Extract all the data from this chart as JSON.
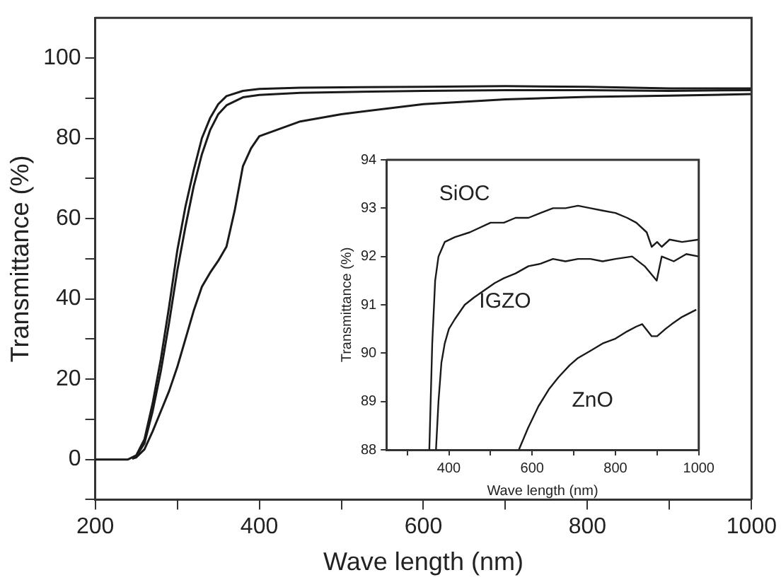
{
  "chart_data": [
    {
      "type": "line",
      "xlabel": "Wave length (nm)",
      "ylabel": "Transmittance (%)",
      "xlim": [
        200,
        1000
      ],
      "ylim": [
        -10,
        110
      ],
      "xticks": [
        200,
        {
          "value": 300,
          "label": null
        },
        400,
        {
          "value": 500,
          "label": null
        },
        600,
        {
          "value": 700,
          "label": null
        },
        800,
        {
          "value": 900,
          "label": null
        },
        1000
      ],
      "yticks": [
        {
          "value": -10,
          "label": null
        },
        0,
        {
          "value": 10,
          "label": null
        },
        20,
        {
          "value": 30,
          "label": null
        },
        40,
        {
          "value": 50,
          "label": null
        },
        60,
        {
          "value": 70,
          "label": null
        },
        80,
        {
          "value": 90,
          "label": null
        },
        100
      ],
      "grid": false,
      "legend": false,
      "marker": "none",
      "line_style": "solid",
      "series": [
        {
          "color": "#1a1a1a",
          "x": [
            200,
            240,
            250,
            260,
            270,
            280,
            290,
            300,
            310,
            320,
            330,
            340,
            350,
            360,
            380,
            400,
            450,
            500,
            600,
            700,
            800,
            900,
            1000
          ],
          "values": [
            0,
            0,
            1,
            5,
            14,
            25,
            38,
            52,
            63,
            72,
            80,
            85,
            88.5,
            90.5,
            91.8,
            92.3,
            92.6,
            92.7,
            92.8,
            93,
            92.8,
            92.4,
            92.4
          ]
        },
        {
          "color": "#1a1a1a",
          "x": [
            245,
            250,
            260,
            270,
            280,
            290,
            300,
            310,
            320,
            330,
            340,
            350,
            360,
            380,
            400,
            450,
            500,
            600,
            700,
            800,
            900,
            1000
          ],
          "values": [
            0.3,
            0.8,
            4,
            12,
            22,
            34,
            47,
            58,
            68,
            76,
            82,
            86,
            88.2,
            90.2,
            90.8,
            91.3,
            91.5,
            91.8,
            92,
            92,
            91.8,
            92
          ]
        },
        {
          "color": "#1a1a1a",
          "x": [
            245,
            250,
            260,
            270,
            280,
            290,
            300,
            310,
            320,
            330,
            340,
            350,
            360,
            370,
            380,
            390,
            400,
            450,
            500,
            600,
            700,
            800,
            900,
            1000
          ],
          "values": [
            0.2,
            0.5,
            2.5,
            7,
            12,
            17,
            23,
            30,
            37,
            43,
            46.5,
            49.5,
            53,
            62,
            73,
            77.5,
            80.5,
            84.2,
            86,
            88.5,
            89.7,
            90.3,
            90.6,
            91
          ]
        }
      ]
    },
    {
      "type": "line",
      "xlabel": "Wave length (nm)",
      "ylabel": "Transmittance (%)",
      "xlim": [
        250,
        1000
      ],
      "ylim": [
        88,
        94
      ],
      "xticks": [
        {
          "value": 300,
          "label": null
        },
        400,
        {
          "value": 500,
          "label": null
        },
        600,
        {
          "value": 700,
          "label": null
        },
        800,
        {
          "value": 900,
          "label": null
        },
        1000
      ],
      "yticks": [
        88,
        89,
        90,
        91,
        92,
        93,
        94
      ],
      "grid": false,
      "legend": false,
      "marker": "none",
      "line_style": "solid",
      "series": [
        {
          "name": "SiOC",
          "color": "#1a1a1a",
          "x": [
            353,
            360,
            367,
            375,
            390,
            414,
            450,
            500,
            532,
            560,
            591,
            620,
            650,
            680,
            710,
            740,
            769,
            800,
            828,
            850,
            875,
            887,
            900,
            911,
            930,
            960,
            1000
          ],
          "values": [
            88,
            90.2,
            91.5,
            92,
            92.3,
            92.4,
            92.5,
            92.7,
            92.7,
            92.8,
            92.8,
            92.9,
            93,
            93,
            93.05,
            93,
            92.95,
            92.9,
            92.8,
            92.7,
            92.5,
            92.2,
            92.3,
            92.2,
            92.35,
            92.3,
            92.35
          ]
        },
        {
          "name": "IGZO",
          "color": "#1a1a1a",
          "x": [
            369,
            375,
            382,
            390,
            400,
            414,
            438,
            460,
            485,
            510,
            532,
            560,
            591,
            620,
            650,
            680,
            710,
            740,
            769,
            800,
            840,
            870,
            899,
            911,
            940,
            970,
            1000
          ],
          "values": [
            88,
            89,
            89.8,
            90.2,
            90.5,
            90.7,
            91,
            91.15,
            91.3,
            91.45,
            91.55,
            91.65,
            91.8,
            91.85,
            91.95,
            91.9,
            91.95,
            91.95,
            91.9,
            91.95,
            92,
            91.8,
            91.5,
            92,
            91.9,
            92.05,
            92
          ]
        },
        {
          "name": "ZnO",
          "color": "#1a1a1a",
          "x": [
            568,
            590,
            615,
            640,
            663,
            690,
            710,
            740,
            769,
            800,
            828,
            850,
            864,
            887,
            900,
            920,
            935,
            960,
            994
          ],
          "values": [
            88,
            88.45,
            88.9,
            89.25,
            89.5,
            89.75,
            89.9,
            90.05,
            90.2,
            90.3,
            90.45,
            90.55,
            90.6,
            90.35,
            90.35,
            90.5,
            90.6,
            90.75,
            90.9
          ]
        }
      ]
    }
  ]
}
